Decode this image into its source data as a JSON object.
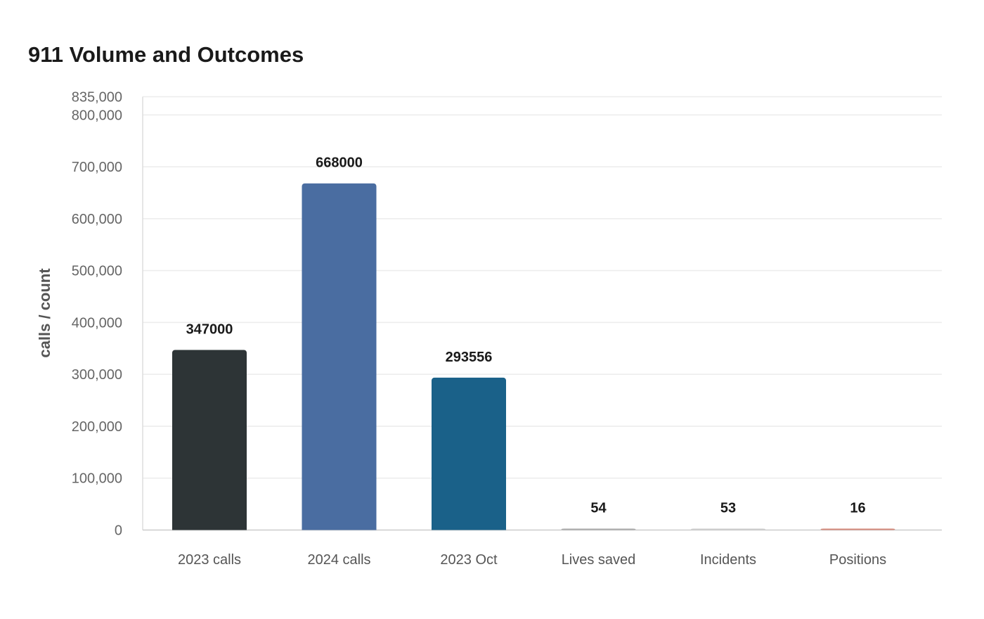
{
  "chart_data": {
    "type": "bar",
    "title": "911 Volume and Outcomes",
    "xlabel": "",
    "ylabel": "calls / count",
    "categories": [
      "2023 calls",
      "2024 calls",
      "2023 Oct",
      "Lives saved",
      "Incidents",
      "Positions"
    ],
    "values": [
      347000,
      668000,
      293556,
      54,
      53,
      16
    ],
    "value_labels": [
      "347000",
      "668000",
      "293556",
      "54",
      "53",
      "16"
    ],
    "colors": [
      "#2d3436",
      "#4a6da1",
      "#1a6189",
      "#aaaaaa",
      "#cccccc",
      "#d4897a"
    ],
    "ylim": [
      0,
      835000
    ],
    "yticks": [
      0,
      100000,
      200000,
      300000,
      400000,
      500000,
      600000,
      700000,
      800000,
      835000
    ],
    "ytick_labels": [
      "0",
      "100,000",
      "200,000",
      "300,000",
      "400,000",
      "500,000",
      "600,000",
      "700,000",
      "800,000",
      "835,000"
    ],
    "grid": true,
    "legend": "none"
  }
}
